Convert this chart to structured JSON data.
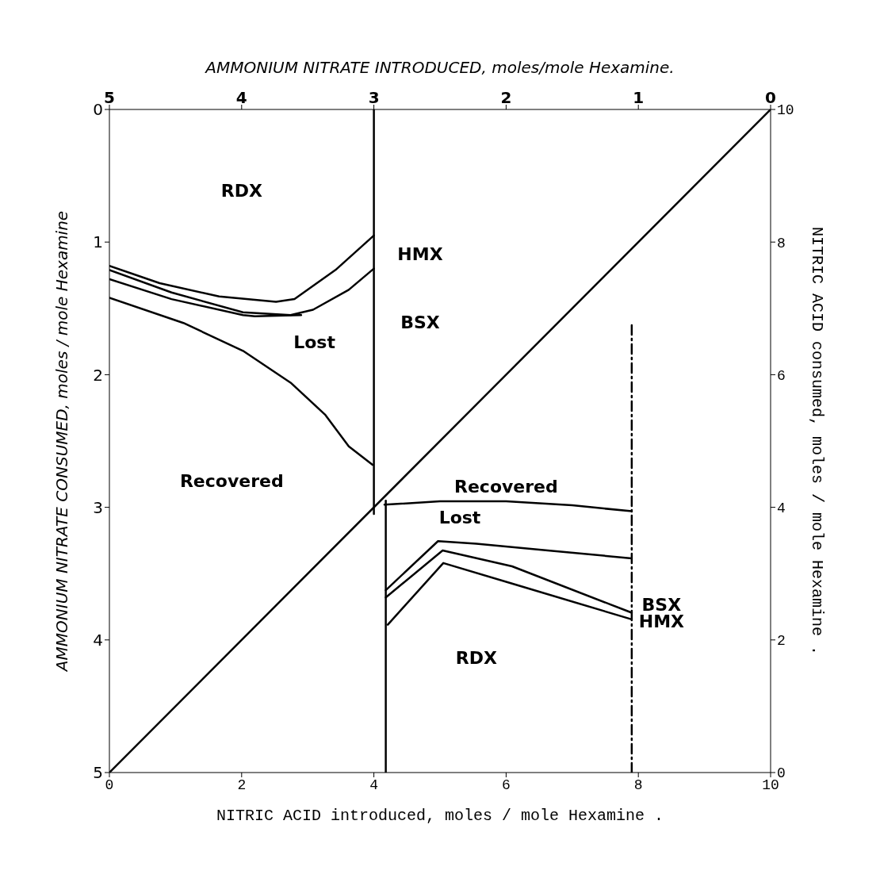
{
  "chart_data": {
    "type": "line",
    "xlabel": "NITRIC ACID introduced, moles / mole Hexamine .",
    "ylabel": "AMMONIUM NITRATE CONSUMED, moles / mole Hexamine",
    "y2label": "NITRIC ACID consumed, moles / mole Hexamine .",
    "x2label": "AMMONIUM NITRATE INTRODUCED, moles/mole Hexamine.",
    "xlim": [
      0,
      10
    ],
    "xticks": [
      0,
      2,
      4,
      6,
      8,
      10
    ],
    "x2lim": [
      5,
      0
    ],
    "x2ticks": [
      5,
      4,
      3,
      2,
      1,
      0
    ],
    "ylim": [
      5,
      0
    ],
    "yticks": [
      0,
      1,
      2,
      3,
      4,
      5
    ],
    "y2lim": [
      0,
      10
    ],
    "y2ticks": [
      0,
      2,
      4,
      6,
      8,
      10
    ],
    "marker": "none",
    "series": [
      {
        "color": "#000000",
        "axis": "y2",
        "x": [
          0,
          10
        ],
        "values": [
          0,
          10
        ]
      },
      {
        "color": "#000000",
        "axis": "x2",
        "x": [
          3,
          3
        ],
        "values": [
          0,
          3.05
        ]
      },
      {
        "color": "#000000",
        "axis": "x2",
        "x": [
          5.0,
          4.62,
          4.17,
          3.74,
          3.6,
          3.29,
          3.0
        ],
        "values": [
          1.18,
          1.31,
          1.41,
          1.45,
          1.43,
          1.21,
          0.95
        ]
      },
      {
        "color": "#000000",
        "axis": "x2",
        "x": [
          5.0,
          4.53,
          3.99,
          3.63,
          3.46,
          3.19,
          3.0
        ],
        "values": [
          1.21,
          1.38,
          1.53,
          1.55,
          1.51,
          1.36,
          1.2
        ]
      },
      {
        "color": "#000000",
        "axis": "x2",
        "x": [
          5.0,
          4.53,
          3.99,
          3.9,
          3.55
        ],
        "values": [
          1.28,
          1.43,
          1.55,
          1.56,
          1.55
        ]
      },
      {
        "color": "#000000",
        "axis": "x2",
        "x": [
          5.0,
          4.44,
          3.99,
          3.63,
          3.37,
          3.19,
          3.01
        ],
        "values": [
          1.42,
          1.61,
          1.82,
          2.06,
          2.3,
          2.54,
          2.68
        ]
      },
      {
        "color": "#000000",
        "axis": "y2",
        "x": [
          4.18,
          4.18
        ],
        "values": [
          0,
          4.1
        ]
      },
      {
        "color": "#000000",
        "axis": "y2",
        "line_style": "dashed",
        "x": [
          7.9,
          7.9
        ],
        "values": [
          0,
          6.8
        ]
      },
      {
        "color": "#000000",
        "axis": "y2",
        "x": [
          4.16,
          5.0,
          6.0,
          7.0,
          7.9
        ],
        "values": [
          4.04,
          4.09,
          4.09,
          4.03,
          3.94
        ]
      },
      {
        "color": "#000000",
        "axis": "y2",
        "x": [
          4.18,
          4.97,
          5.55,
          6.63,
          7.9
        ],
        "values": [
          2.75,
          3.49,
          3.45,
          3.35,
          3.23
        ]
      },
      {
        "color": "#000000",
        "axis": "y2",
        "x": [
          4.18,
          5.04,
          6.09,
          7.9
        ],
        "values": [
          2.64,
          3.35,
          3.11,
          2.41
        ]
      },
      {
        "color": "#000000",
        "axis": "y2",
        "x": [
          4.21,
          5.05,
          6.09,
          7.9
        ],
        "values": [
          2.23,
          3.16,
          2.85,
          2.31
        ]
      }
    ],
    "annotations": [
      "RDX",
      "HMX",
      "BSX",
      "Lost",
      "Recovered",
      "Recovered",
      "Lost",
      "BSX",
      "HMX",
      "RDX"
    ]
  }
}
